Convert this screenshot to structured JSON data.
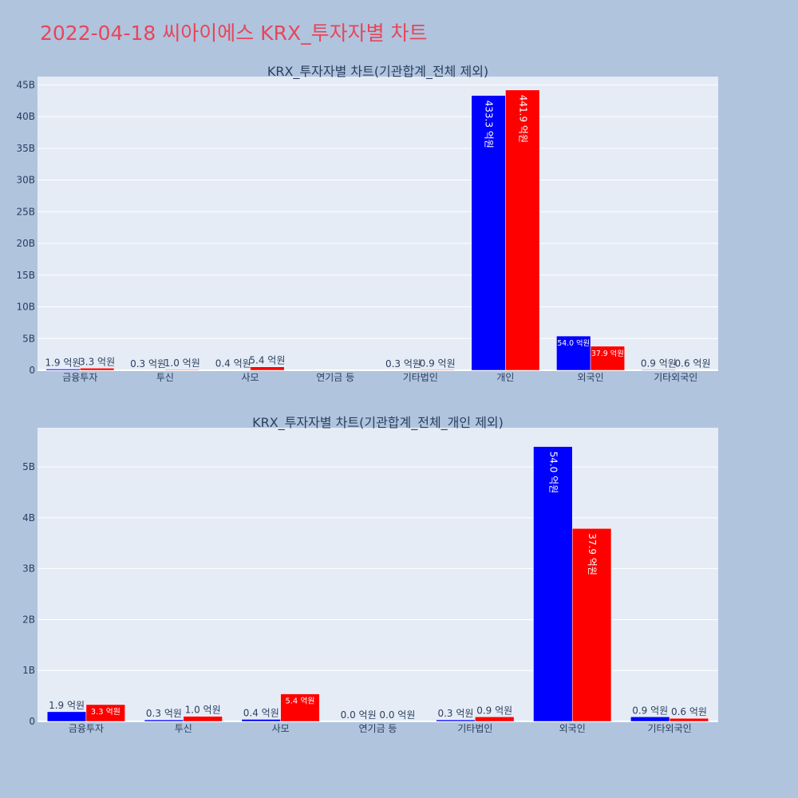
{
  "page_title": "2022-04-18 씨아이에스 KRX_투자자별 차트",
  "colors": {
    "buy": "#0000ff",
    "sell": "#ff0000",
    "plot_bg": "#e5ecf6",
    "page_bg": "#b0c4de",
    "title": "#e8455a"
  },
  "chart_data": [
    {
      "type": "bar",
      "title": "KRX_투자자별 차트(기관합계_전체 제외)",
      "categories": [
        "금융투자",
        "투신",
        "사모",
        "연기금 등",
        "기타법인",
        "개인",
        "외국인",
        "기타외국인"
      ],
      "series": [
        {
          "values": [
            0.19,
            0.03,
            0.04,
            0.0,
            0.03,
            43.33,
            5.4,
            0.09
          ],
          "labels": [
            "1.9 억원",
            "0.3 억원",
            "0.4 억원",
            "",
            "0.3 억원",
            "433.3 억원",
            "54.0 억원",
            "0.9 억원"
          ]
        },
        {
          "values": [
            0.33,
            0.1,
            0.54,
            0.0,
            0.09,
            44.19,
            3.79,
            0.06
          ],
          "labels": [
            "3.3 억원",
            "1.0 억원",
            "5.4 억원",
            "",
            "0.9 억원",
            "441.9 억원",
            "37.9 억원",
            "0.6 억원"
          ]
        }
      ],
      "yticks": [
        "0",
        "5B",
        "10B",
        "15B",
        "20B",
        "25B",
        "30B",
        "35B",
        "40B",
        "45B"
      ],
      "ytick_values": [
        0,
        5,
        10,
        15,
        20,
        25,
        30,
        35,
        40,
        45
      ],
      "ylim": [
        0,
        46.3
      ],
      "unit": "B",
      "grid": true
    },
    {
      "type": "bar",
      "title": "KRX_투자자별 차트(기관합계_전체_개인 제외)",
      "categories": [
        "금융투자",
        "투신",
        "사모",
        "연기금 등",
        "기타법인",
        "외국인",
        "기타외국인"
      ],
      "series": [
        {
          "values": [
            0.19,
            0.03,
            0.04,
            0.0,
            0.03,
            5.4,
            0.09
          ],
          "labels": [
            "1.9 억원",
            "0.3 억원",
            "0.4 억원",
            "0.0 억원",
            "0.3 억원",
            "54.0 억원",
            "0.9 억원"
          ]
        },
        {
          "values": [
            0.33,
            0.1,
            0.54,
            0.0,
            0.09,
            3.79,
            0.06
          ],
          "labels": [
            "3.3 억원",
            "1.0 억원",
            "5.4 억원",
            "0.0 억원",
            "0.9 억원",
            "37.9 억원",
            "0.6 억원"
          ]
        }
      ],
      "yticks": [
        "0",
        "1B",
        "2B",
        "3B",
        "4B",
        "5B"
      ],
      "ytick_values": [
        0,
        1,
        2,
        3,
        4,
        5
      ],
      "ylim": [
        0,
        5.77
      ],
      "unit": "B",
      "grid": true
    }
  ]
}
